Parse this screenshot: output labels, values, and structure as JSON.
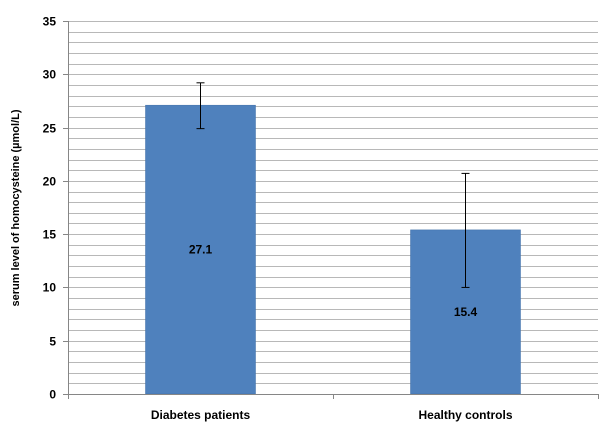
{
  "chart_data": {
    "type": "bar",
    "title": "",
    "xlabel": "",
    "ylabel": "serum level of homocysteine (µmol/L)",
    "categories": [
      "Diabetes patients",
      "Healthy controls"
    ],
    "values": [
      27.1,
      15.4
    ],
    "data_labels": [
      "27.1",
      "15.4"
    ],
    "error_bars": [
      {
        "low": 24.9,
        "high": 29.2
      },
      {
        "low": 10.0,
        "high": 20.7
      }
    ],
    "ylim": [
      0,
      35
    ],
    "y_ticks": [
      0,
      5,
      10,
      15,
      20,
      25,
      30,
      35
    ],
    "minor_gridline_step": 1,
    "grid": true,
    "legend": "none",
    "colors": {
      "bar": "#4f81bd",
      "bar_edge": "#3f6fa8",
      "gridline": "#b8b8b8",
      "axis": "#868686",
      "error_bar": "#000000"
    }
  }
}
